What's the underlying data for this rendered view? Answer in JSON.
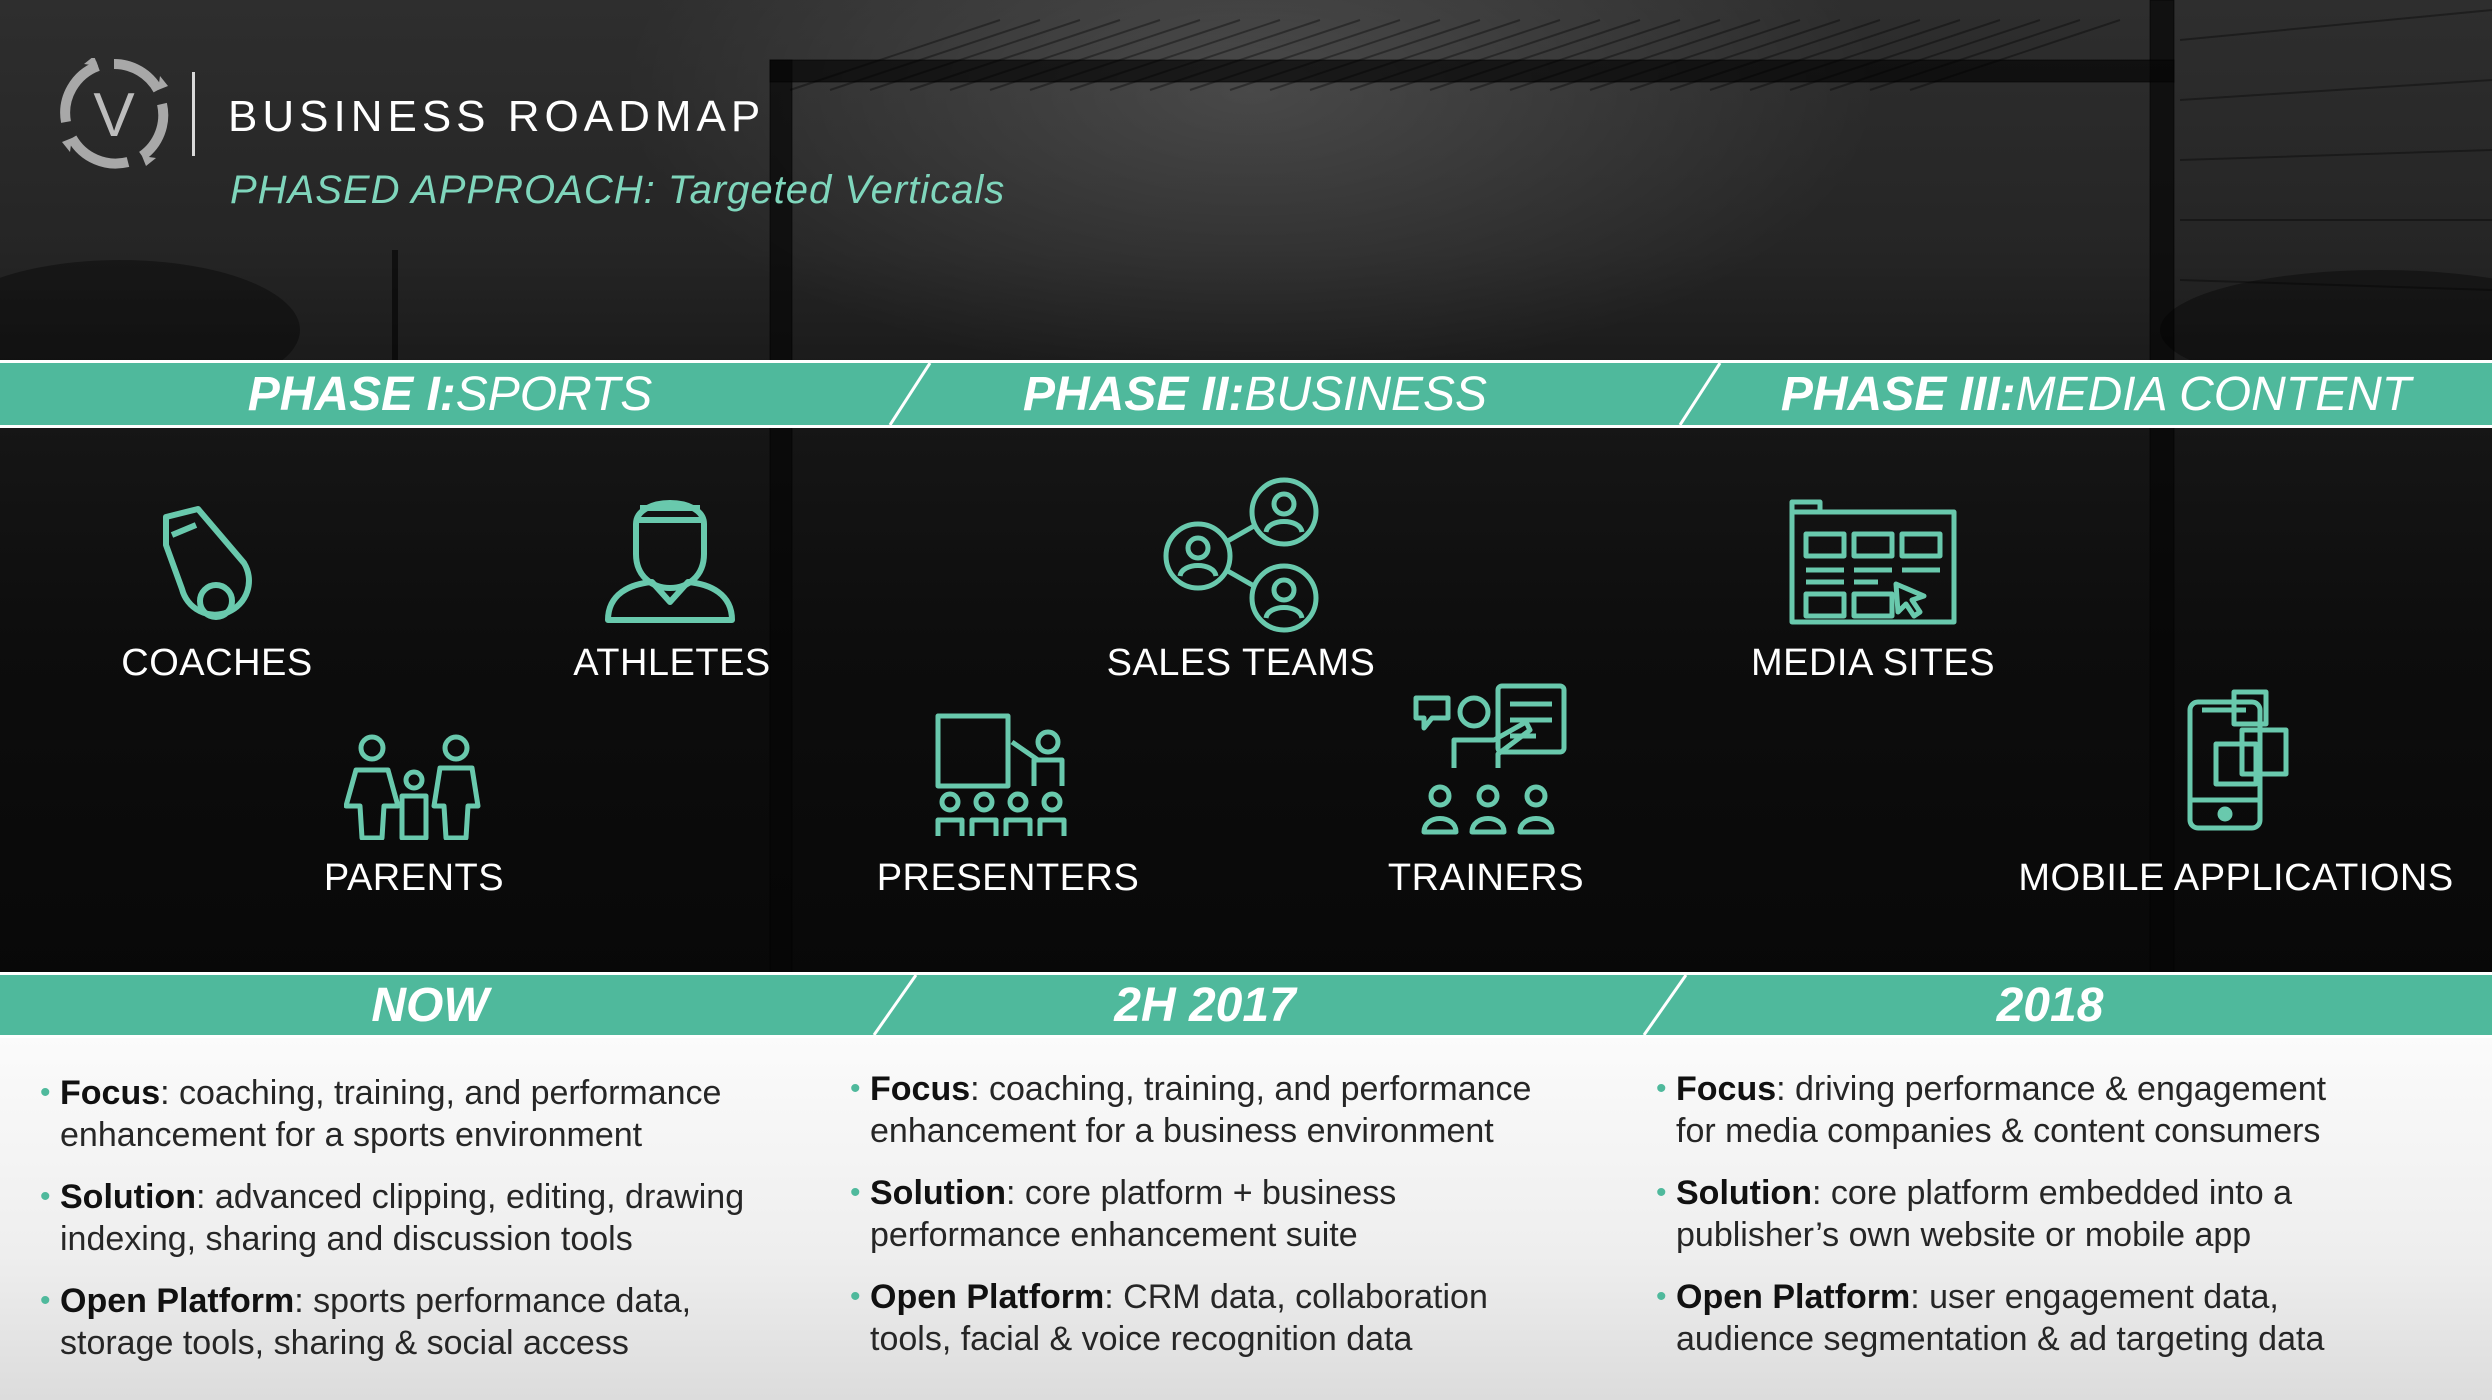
{
  "header": {
    "title": "BUSINESS ROADMAP",
    "subtitle": "PHASED APPROACH: Targeted Verticals",
    "logo_letter": "V"
  },
  "colors": {
    "accent": "#4fb99c",
    "subtitle": "#7fd6bc",
    "icon_stroke": "#69c9ad"
  },
  "phases": [
    {
      "bold": "PHASE I:",
      "rest": " SPORTS"
    },
    {
      "bold": "PHASE II:",
      "rest": " BUSINESS"
    },
    {
      "bold": "PHASE III:",
      "rest": " MEDIA CONTENT"
    }
  ],
  "verticals": [
    {
      "label": "COACHES",
      "icon": "whistle-icon"
    },
    {
      "label": "ATHLETES",
      "icon": "athlete-icon"
    },
    {
      "label": "PARENTS",
      "icon": "family-icon"
    },
    {
      "label": "SALES TEAMS",
      "icon": "network-icon"
    },
    {
      "label": "PRESENTERS",
      "icon": "presenter-icon"
    },
    {
      "label": "TRAINERS",
      "icon": "trainer-icon"
    },
    {
      "label": "MEDIA SITES",
      "icon": "website-icon"
    },
    {
      "label": "MOBILE APPLICATIONS",
      "icon": "mobile-app-icon"
    }
  ],
  "timeline": [
    "NOW",
    "2H 2017",
    "2018"
  ],
  "columns": [
    {
      "bullets": [
        {
          "key": "Focus",
          "line1": ": coaching, training, and performance",
          "line2": "enhancement for a sports environment"
        },
        {
          "key": "Solution",
          "line1": ": advanced clipping, editing, drawing",
          "line2": "indexing, sharing and discussion tools"
        },
        {
          "key": "Open Platform",
          "line1": ": sports performance data,",
          "line2": "storage tools, sharing & social access"
        }
      ]
    },
    {
      "bullets": [
        {
          "key": "Focus",
          "line1": ": coaching, training, and performance",
          "line2": "enhancement for a business environment"
        },
        {
          "key": "Solution",
          "line1": ": core platform + business",
          "line2": "performance enhancement suite"
        },
        {
          "key": "Open Platform",
          "line1": ": CRM data, collaboration",
          "line2": "tools, facial & voice recognition data"
        }
      ]
    },
    {
      "bullets": [
        {
          "key": "Focus",
          "line1": ": driving performance & engagement",
          "line2": "for media companies & content consumers"
        },
        {
          "key": "Solution",
          "line1": ": core platform embedded into a",
          "line2": "publisher’s own website or mobile app"
        },
        {
          "key": "Open Platform",
          "line1": ": user engagement data,",
          "line2": "audience segmentation & ad targeting data"
        }
      ]
    }
  ]
}
